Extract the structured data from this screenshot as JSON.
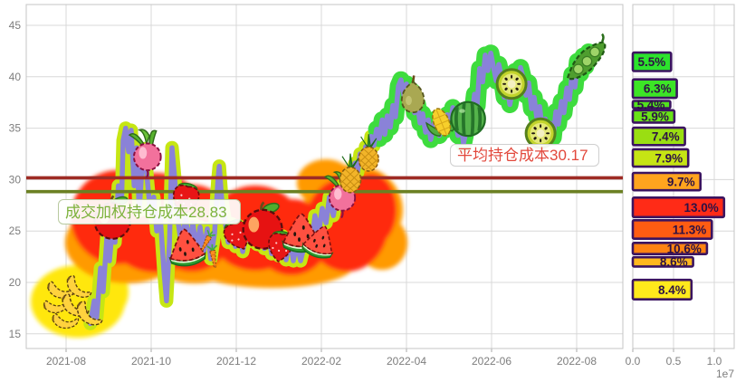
{
  "main_chart": {
    "y_tick_labels": [
      "45",
      "40",
      "35",
      "30",
      "25",
      "20",
      "15"
    ],
    "x_tick_labels": [
      "2021-08",
      "2021-10",
      "2021-12",
      "2022-02",
      "2022-04",
      "2022-06",
      "2022-08"
    ],
    "avg_cost": {
      "label": "平均持仓成本30.17",
      "value": 30.17
    },
    "vwap_cost": {
      "label": "成交加权持仓成本28.83",
      "value": 28.83
    },
    "colors": {
      "price_line": "#8a82d8",
      "glow_left": "#c6e614",
      "glow_right": "#3edc3e",
      "avg_line": "#9e2b25",
      "vwap_line": "#6b8023",
      "avg_text": "#e2483c",
      "vwap_text": "#7cb23c",
      "blob_red": "#ff2a0e",
      "blob_orange": "#ff9a00",
      "blob_yellow": "#ffe70a"
    }
  },
  "volume_panel": {
    "x_tick_labels": [
      "0.0",
      "0.5",
      "1.0"
    ],
    "scale_label": "1e7"
  },
  "chart_data": [
    {
      "type": "line",
      "title": "",
      "x_unit": "months_since_2021-08",
      "x_tick_labels": [
        "2021-08",
        "2021-10",
        "2021-12",
        "2022-02",
        "2022-04",
        "2022-06",
        "2022-08"
      ],
      "y_tick_labels": [
        45,
        40,
        35,
        30,
        25,
        20,
        15
      ],
      "ylim": [
        13.6,
        47.0
      ],
      "grid": true,
      "hlines": [
        {
          "label": "平均持仓成本30.17",
          "y": 30.17
        },
        {
          "label": "成交加权持仓成本28.83",
          "y": 28.83
        }
      ],
      "series": [
        {
          "name": "price",
          "points": [
            [
              0.57,
              16.0
            ],
            [
              0.66,
              18.2
            ],
            [
              0.72,
              16.6
            ],
            [
              0.81,
              21.4
            ],
            [
              0.87,
              19.1
            ],
            [
              0.96,
              24.4
            ],
            [
              1.02,
              22.1
            ],
            [
              1.09,
              25.3
            ],
            [
              1.15,
              23.9
            ],
            [
              1.23,
              29.4
            ],
            [
              1.3,
              27.2
            ],
            [
              1.34,
              33.8
            ],
            [
              1.4,
              35.0
            ],
            [
              1.47,
              32.7
            ],
            [
              1.53,
              34.8
            ],
            [
              1.6,
              29.4
            ],
            [
              1.66,
              33.1
            ],
            [
              1.72,
              27.0
            ],
            [
              1.79,
              31.5
            ],
            [
              1.85,
              33.0
            ],
            [
              1.91,
              29.9
            ],
            [
              1.98,
              26.8
            ],
            [
              2.06,
              28.3
            ],
            [
              2.13,
              25.0
            ],
            [
              2.21,
              26.5
            ],
            [
              2.3,
              21.1
            ],
            [
              2.36,
              18.2
            ],
            [
              2.43,
              23.9
            ],
            [
              2.49,
              33.1
            ],
            [
              2.55,
              30.3
            ],
            [
              2.62,
              26.3
            ],
            [
              2.7,
              23.9
            ],
            [
              2.81,
              26.3
            ],
            [
              2.89,
              23.5
            ],
            [
              2.98,
              25.8
            ],
            [
              3.06,
              23.0
            ],
            [
              3.15,
              25.4
            ],
            [
              3.23,
              22.9
            ],
            [
              3.32,
              25.2
            ],
            [
              3.4,
              22.3
            ],
            [
              3.49,
              24.8
            ],
            [
              3.57,
              30.0
            ],
            [
              3.6,
              31.3
            ],
            [
              3.66,
              28.0
            ],
            [
              3.72,
              26.4
            ],
            [
              3.81,
              23.9
            ],
            [
              3.89,
              25.7
            ],
            [
              3.98,
              23.5
            ],
            [
              4.06,
              25.5
            ],
            [
              4.15,
              23.0
            ],
            [
              4.23,
              24.9
            ],
            [
              4.32,
              24.0
            ],
            [
              4.4,
              25.7
            ],
            [
              4.49,
              23.7
            ],
            [
              4.57,
              25.5
            ],
            [
              4.66,
              23.3
            ],
            [
              4.74,
              25.2
            ],
            [
              4.83,
              22.8
            ],
            [
              4.91,
              24.9
            ],
            [
              5.0,
              22.6
            ],
            [
              5.09,
              24.5
            ],
            [
              5.17,
              22.2
            ],
            [
              5.26,
              24.2
            ],
            [
              5.34,
              22.1
            ],
            [
              5.43,
              23.8
            ],
            [
              5.51,
              22.1
            ],
            [
              5.6,
              23.6
            ],
            [
              5.68,
              24.9
            ],
            [
              5.77,
              23.8
            ],
            [
              5.85,
              26.5
            ],
            [
              5.94,
              24.9
            ],
            [
              6.02,
              27.2
            ],
            [
              6.11,
              25.8
            ],
            [
              6.19,
              28.3
            ],
            [
              6.28,
              26.5
            ],
            [
              6.34,
              27.9
            ],
            [
              6.4,
              28.8
            ],
            [
              6.47,
              28.3
            ],
            [
              6.53,
              29.8
            ],
            [
              6.6,
              28.9
            ],
            [
              6.66,
              30.5
            ],
            [
              6.72,
              29.9
            ],
            [
              6.79,
              31.6
            ],
            [
              6.85,
              30.7
            ],
            [
              6.91,
              32.5
            ],
            [
              6.98,
              31.5
            ],
            [
              7.04,
              33.2
            ],
            [
              7.11,
              32.3
            ],
            [
              7.17,
              34.2
            ],
            [
              7.23,
              33.3
            ],
            [
              7.3,
              34.9
            ],
            [
              7.36,
              34.0
            ],
            [
              7.43,
              35.8
            ],
            [
              7.49,
              34.4
            ],
            [
              7.55,
              36.2
            ],
            [
              7.62,
              35.1
            ],
            [
              7.68,
              37.2
            ],
            [
              7.74,
              36.1
            ],
            [
              7.81,
              39.1
            ],
            [
              7.87,
              39.7
            ],
            [
              7.94,
              38.2
            ],
            [
              8.0,
              39.3
            ],
            [
              8.06,
              37.5
            ],
            [
              8.13,
              38.6
            ],
            [
              8.19,
              36.5
            ],
            [
              8.26,
              37.3
            ],
            [
              8.32,
              35.5
            ],
            [
              8.38,
              36.4
            ],
            [
              8.45,
              34.6
            ],
            [
              8.51,
              35.8
            ],
            [
              8.57,
              33.9
            ],
            [
              8.64,
              35.3
            ],
            [
              8.7,
              35.9
            ],
            [
              8.77,
              34.3
            ],
            [
              8.83,
              35.7
            ],
            [
              8.89,
              34.8
            ],
            [
              8.96,
              36.3
            ],
            [
              9.02,
              35.2
            ],
            [
              9.09,
              37.0
            ],
            [
              9.15,
              35.6
            ],
            [
              9.21,
              34.3
            ],
            [
              9.28,
              35.4
            ],
            [
              9.34,
              33.5
            ],
            [
              9.4,
              34.7
            ],
            [
              9.47,
              36.8
            ],
            [
              9.53,
              35.9
            ],
            [
              9.6,
              38.3
            ],
            [
              9.66,
              37.2
            ],
            [
              9.72,
              40.8
            ],
            [
              9.79,
              39.5
            ],
            [
              9.85,
              42.1
            ],
            [
              9.91,
              40.6
            ],
            [
              9.98,
              42.3
            ],
            [
              10.04,
              41.0
            ],
            [
              10.11,
              39.6
            ],
            [
              10.17,
              41.2
            ],
            [
              10.23,
              40.1
            ],
            [
              10.3,
              38.0
            ],
            [
              10.36,
              39.2
            ],
            [
              10.43,
              37.3
            ],
            [
              10.49,
              38.7
            ],
            [
              10.55,
              40.5
            ],
            [
              10.62,
              39.1
            ],
            [
              10.68,
              40.9
            ],
            [
              10.74,
              39.9
            ],
            [
              10.81,
              38.2
            ],
            [
              10.87,
              39.4
            ],
            [
              10.94,
              36.9
            ],
            [
              11.0,
              38.0
            ],
            [
              11.06,
              36.1
            ],
            [
              11.13,
              37.1
            ],
            [
              11.19,
              34.9
            ],
            [
              11.26,
              35.9
            ],
            [
              11.32,
              34.3
            ],
            [
              11.38,
              35.5
            ],
            [
              11.45,
              34.1
            ],
            [
              11.51,
              36.6
            ],
            [
              11.57,
              35.4
            ],
            [
              11.64,
              37.6
            ],
            [
              11.7,
              36.5
            ],
            [
              11.77,
              38.9
            ],
            [
              11.83,
              37.8
            ],
            [
              11.89,
              40.2
            ],
            [
              11.96,
              39.0
            ],
            [
              12.02,
              41.5
            ],
            [
              12.09,
              40.3
            ],
            [
              12.15,
              42.0
            ],
            [
              12.21,
              41.0
            ],
            [
              12.28,
              42.4
            ]
          ]
        }
      ],
      "markers": [
        {
          "kind": "banana",
          "x": -0.11,
          "y": 19.5,
          "size": 34,
          "rot": -15
        },
        {
          "kind": "banana",
          "x": 0.32,
          "y": 19.7,
          "size": 34,
          "rot": 12
        },
        {
          "kind": "banana",
          "x": -0.23,
          "y": 18.0,
          "size": 32,
          "rot": -35
        },
        {
          "kind": "banana",
          "x": 0.23,
          "y": 17.9,
          "size": 36,
          "rot": 8
        },
        {
          "kind": "banana",
          "x": -0.02,
          "y": 16.5,
          "size": 32,
          "rot": -20
        },
        {
          "kind": "banana",
          "x": 0.57,
          "y": 17.1,
          "size": 36,
          "rot": 15
        },
        {
          "kind": "radish",
          "x": 1.91,
          "y": 32.5,
          "size": 44,
          "rot": 0
        },
        {
          "kind": "apple",
          "x": 1.09,
          "y": 26.2,
          "size": 48,
          "rot": 0
        },
        {
          "kind": "strawberry",
          "x": 2.81,
          "y": 28.2,
          "size": 42,
          "rot": 12
        },
        {
          "kind": "watermelon-slice",
          "x": 2.83,
          "y": 23.3,
          "size": 46,
          "rot": -8
        },
        {
          "kind": "carrot",
          "x": 3.28,
          "y": 23.8,
          "size": 26,
          "rot": 28
        },
        {
          "kind": "carrot",
          "x": 3.47,
          "y": 22.3,
          "size": 28,
          "rot": -8
        },
        {
          "kind": "strawberry",
          "x": 4.02,
          "y": 24.7,
          "size": 40,
          "rot": -25
        },
        {
          "kind": "apple",
          "x": 4.62,
          "y": 25.4,
          "size": 52,
          "rot": 0
        },
        {
          "kind": "strawberry",
          "x": 5.04,
          "y": 23.6,
          "size": 40,
          "rot": 8
        },
        {
          "kind": "watermelon-slice",
          "x": 5.53,
          "y": 24.7,
          "size": 48,
          "rot": 0
        },
        {
          "kind": "watermelon-slice",
          "x": 5.96,
          "y": 23.9,
          "size": 40,
          "rot": 18
        },
        {
          "kind": "radish",
          "x": 6.49,
          "y": 28.5,
          "size": 42,
          "rot": 0
        },
        {
          "kind": "pineapple",
          "x": 6.68,
          "y": 30.5,
          "size": 40,
          "rot": 0
        },
        {
          "kind": "pineapple",
          "x": 7.11,
          "y": 32.5,
          "size": 38,
          "rot": 0
        },
        {
          "kind": "pear",
          "x": 8.15,
          "y": 38.1,
          "size": 46,
          "rot": 0
        },
        {
          "kind": "corn",
          "x": 8.83,
          "y": 35.5,
          "size": 42,
          "rot": -22
        },
        {
          "kind": "watermelon",
          "x": 9.45,
          "y": 35.9,
          "size": 44,
          "rot": 0
        },
        {
          "kind": "kiwi",
          "x": 10.47,
          "y": 39.3,
          "size": 40,
          "rot": 0
        },
        {
          "kind": "kiwi",
          "x": 11.15,
          "y": 34.5,
          "size": 40,
          "rot": 0
        },
        {
          "kind": "peas",
          "x": 12.23,
          "y": 41.6,
          "size": 50,
          "rot": -28
        }
      ]
    },
    {
      "type": "bar",
      "orientation": "horizontal",
      "title": "",
      "x_tick_labels": [
        "0.0",
        "0.5",
        "1.0"
      ],
      "x_scale": "1e7",
      "xlim": [
        0,
        1.24
      ],
      "bars": [
        {
          "label": "5.5%",
          "pct": 5.5,
          "volume_e7": 0.47,
          "price_top": 42.4,
          "price_bottom": 40.5,
          "color": "#2ce32c"
        },
        {
          "label": "6.3%",
          "pct": 6.3,
          "volume_e7": 0.54,
          "price_top": 39.8,
          "price_bottom": 37.9,
          "color": "#3ce426"
        },
        {
          "label": "5.4%",
          "pct": 5.4,
          "volume_e7": 0.46,
          "price_top": 37.7,
          "price_bottom": 36.9,
          "color": "#52e11e"
        },
        {
          "label": "5.9%",
          "pct": 5.9,
          "volume_e7": 0.51,
          "price_top": 36.8,
          "price_bottom": 35.5,
          "color": "#68e118"
        },
        {
          "label": "7.4%",
          "pct": 7.4,
          "volume_e7": 0.64,
          "price_top": 35.1,
          "price_bottom": 33.3,
          "color": "#9ade12"
        },
        {
          "label": "7.9%",
          "pct": 7.9,
          "volume_e7": 0.68,
          "price_top": 33.0,
          "price_bottom": 31.2,
          "color": "#c6e414"
        },
        {
          "label": "9.7%",
          "pct": 9.7,
          "volume_e7": 0.83,
          "price_top": 30.7,
          "price_bottom": 28.9,
          "color": "#ffa41e"
        },
        {
          "label": "13.0%",
          "pct": 13.0,
          "volume_e7": 1.12,
          "price_top": 28.3,
          "price_bottom": 26.3,
          "color": "#ff2b17"
        },
        {
          "label": "11.3%",
          "pct": 11.3,
          "volume_e7": 0.97,
          "price_top": 26.1,
          "price_bottom": 24.2,
          "color": "#ff5c12"
        },
        {
          "label": "10.6%",
          "pct": 10.6,
          "volume_e7": 0.91,
          "price_top": 23.9,
          "price_bottom": 22.7,
          "color": "#ff8312"
        },
        {
          "label": "8.6%",
          "pct": 8.6,
          "volume_e7": 0.74,
          "price_top": 22.5,
          "price_bottom": 21.5,
          "color": "#ffb81e"
        },
        {
          "label": "8.4%",
          "pct": 8.4,
          "volume_e7": 0.72,
          "price_top": 20.3,
          "price_bottom": 18.3,
          "color": "#ffe91c"
        }
      ]
    }
  ]
}
